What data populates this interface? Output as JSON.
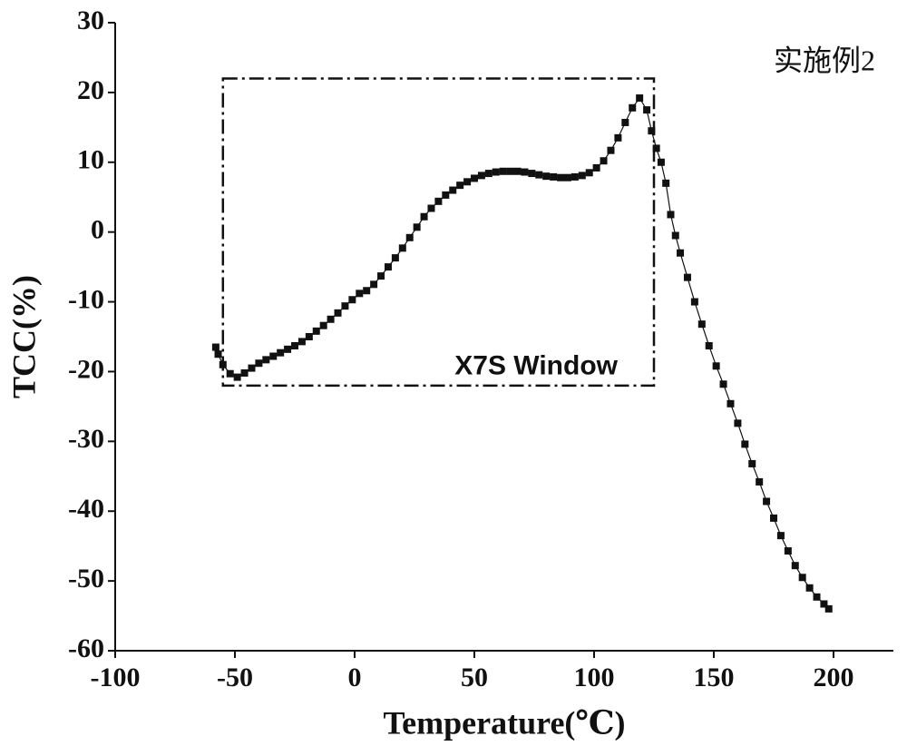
{
  "chart_data": {
    "type": "scatter-line",
    "x_label": "Temperature(℃)",
    "y_label": "TCC(%)",
    "annotation": "实施例2",
    "window": {
      "label": "X7S Window",
      "x": [
        -55,
        125
      ],
      "y": [
        -22,
        22
      ]
    },
    "color": "#111111",
    "x": [
      -58,
      -57,
      -55,
      -52,
      -49,
      -46,
      -43,
      -40,
      -37,
      -34,
      -31,
      -28,
      -25,
      -22,
      -19,
      -16,
      -13,
      -10,
      -7,
      -4,
      -1,
      2,
      5,
      8,
      11,
      14,
      17,
      20,
      23,
      26,
      29,
      32,
      35,
      38,
      41,
      44,
      47,
      50,
      53,
      56,
      59,
      62,
      65,
      68,
      71,
      74,
      77,
      80,
      83,
      86,
      89,
      92,
      95,
      98,
      101,
      104,
      107,
      110,
      113,
      116,
      119,
      122,
      124,
      126,
      128,
      130,
      132,
      134,
      136,
      139,
      142,
      145,
      148,
      151,
      154,
      157,
      160,
      163,
      166,
      169,
      172,
      175,
      178,
      181,
      184,
      187,
      190,
      193,
      196,
      198
    ],
    "values": [
      -16.5,
      -17.5,
      -19,
      -20.3,
      -20.8,
      -20.2,
      -19.5,
      -18.8,
      -18.3,
      -17.8,
      -17.3,
      -16.8,
      -16.3,
      -15.7,
      -15,
      -14.2,
      -13.4,
      -12.5,
      -11.6,
      -10.6,
      -9.7,
      -8.8,
      -8.4,
      -7.5,
      -6.3,
      -5,
      -3.7,
      -2.3,
      -0.8,
      0.7,
      2.2,
      3.4,
      4.4,
      5.3,
      6,
      6.7,
      7.2,
      7.7,
      8.1,
      8.4,
      8.6,
      8.7,
      8.7,
      8.7,
      8.6,
      8.4,
      8.2,
      8,
      7.9,
      7.8,
      7.8,
      7.9,
      8.1,
      8.5,
      9.2,
      10.2,
      11.7,
      13.5,
      15.7,
      17.8,
      19.2,
      17.5,
      14.5,
      12,
      10,
      7,
      2.5,
      -0.5,
      -3,
      -6.5,
      -10,
      -13.2,
      -16.3,
      -19.2,
      -21.8,
      -24.6,
      -27.4,
      -30.4,
      -33.2,
      -35.8,
      -38.6,
      -41,
      -43.5,
      -45.7,
      -47.8,
      -49.5,
      -51,
      -52.3,
      -53.3,
      -54
    ],
    "xlim": [
      -100,
      225
    ],
    "xticks": [
      -100,
      -50,
      0,
      50,
      100,
      150,
      200
    ],
    "ylim": [
      -60,
      30
    ],
    "yticks": [
      -60,
      -50,
      -40,
      -30,
      -20,
      -10,
      0,
      10,
      20,
      30
    ]
  }
}
